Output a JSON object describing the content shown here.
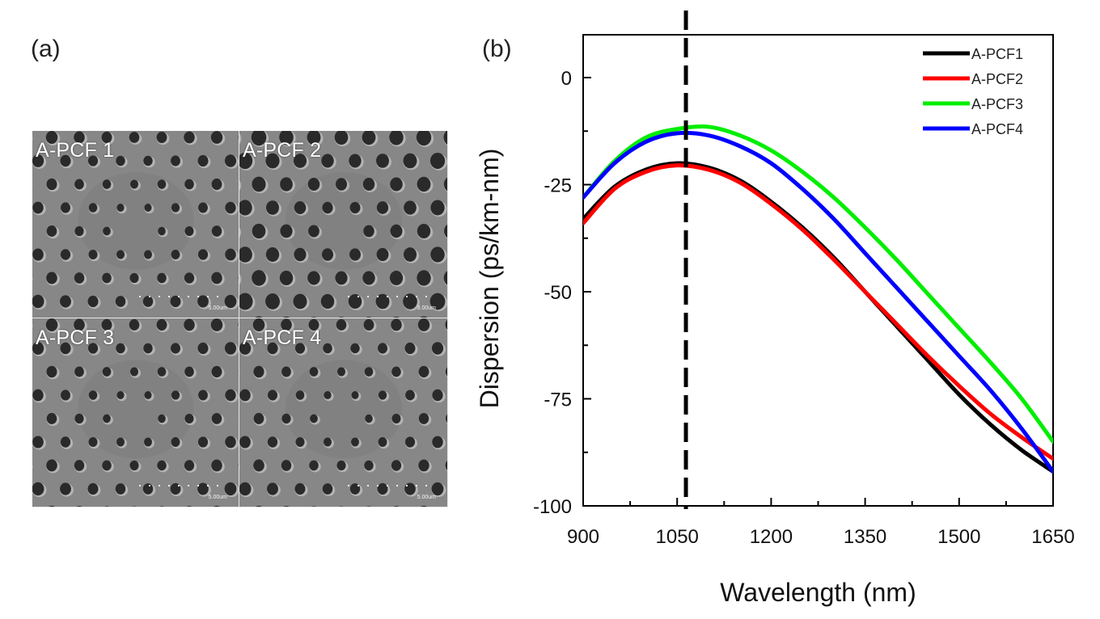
{
  "panels": {
    "a_label": "(a)",
    "b_label": "(b)"
  },
  "sem_images": [
    {
      "label": "A-PCF 1",
      "scale": "5.00um"
    },
    {
      "label": "A-PCF 2",
      "scale": "3.00um"
    },
    {
      "label": "A-PCF 3",
      "scale": "5.00um"
    },
    {
      "label": "A-PCF 4",
      "scale": "5.00um"
    }
  ],
  "chart_data": {
    "type": "line",
    "title": "",
    "xlabel": "Wavelength (nm)",
    "ylabel": "Dispersion (ps/km-nm)",
    "xlim": [
      900,
      1650
    ],
    "ylim": [
      -100,
      10
    ],
    "xticks": [
      900,
      1050,
      1200,
      1350,
      1500,
      1650
    ],
    "yticks": [
      0,
      -25,
      -50,
      -75,
      -100
    ],
    "x": [
      900,
      950,
      1000,
      1050,
      1100,
      1150,
      1200,
      1250,
      1300,
      1350,
      1400,
      1450,
      1500,
      1550,
      1600,
      1650
    ],
    "series": [
      {
        "name": "A-PCF1",
        "color": "#000000",
        "values": [
          -33,
          -25.5,
          -21.5,
          -20,
          -21,
          -24,
          -29,
          -35,
          -42,
          -50,
          -58,
          -66,
          -74,
          -81,
          -87,
          -92
        ]
      },
      {
        "name": "A-PCF2",
        "color": "#ff0000",
        "values": [
          -34,
          -26,
          -22,
          -20.5,
          -21.5,
          -24.5,
          -29.5,
          -35.5,
          -42.5,
          -50,
          -57.5,
          -65,
          -72,
          -78.5,
          -84,
          -89
        ]
      },
      {
        "name": "A-PCF3",
        "color": "#00ee00",
        "values": [
          -28,
          -19.5,
          -14,
          -12,
          -11.5,
          -13.5,
          -17,
          -22,
          -28,
          -35,
          -42.5,
          -50.5,
          -58.5,
          -66.5,
          -75,
          -85
        ]
      },
      {
        "name": "A-PCF4",
        "color": "#0000ff",
        "values": [
          -28,
          -20,
          -15,
          -13,
          -13.5,
          -16,
          -20,
          -26,
          -33,
          -41,
          -49,
          -57,
          -65,
          -73,
          -82,
          -92
        ]
      }
    ],
    "marker_line": {
      "x": 1064,
      "style": "dashed"
    },
    "legend_position": "top-right",
    "grid": false
  }
}
